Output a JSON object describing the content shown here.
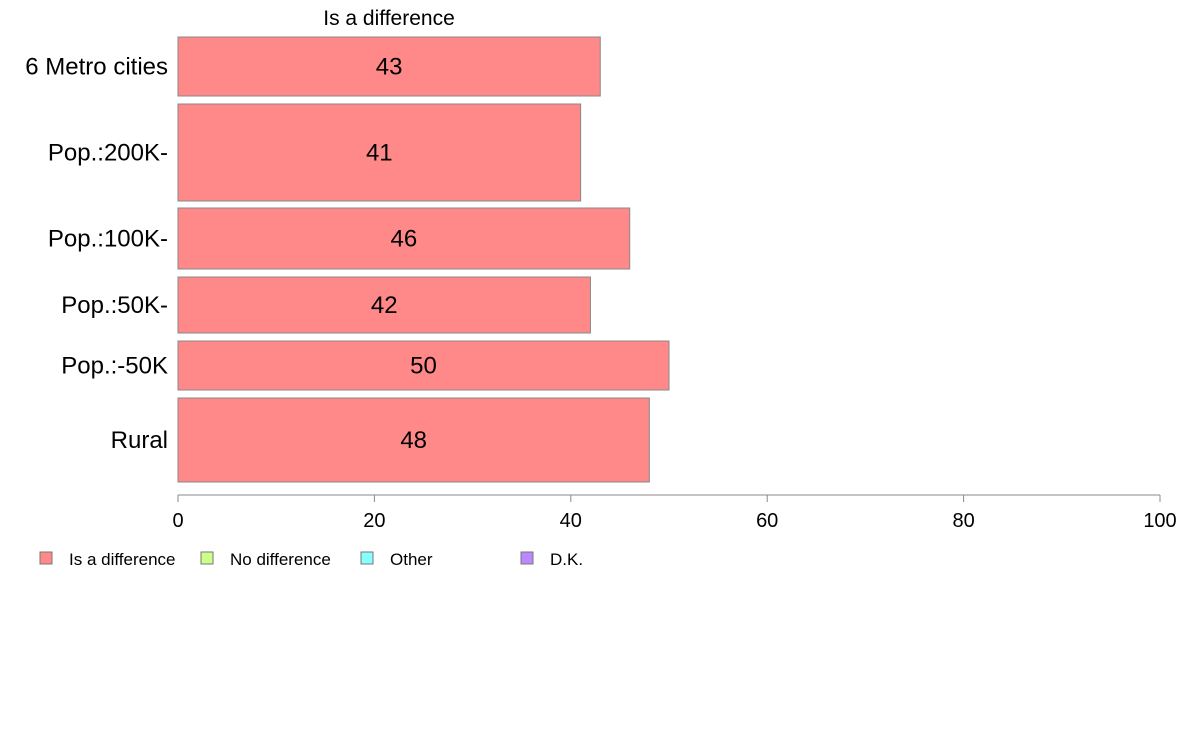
{
  "chart_data": {
    "type": "bar",
    "orientation": "horizontal",
    "title": "Is a difference",
    "categories": [
      "6 Metro cities",
      "Pop.:200K-",
      "Pop.:100K-",
      "Pop.:50K-",
      "Pop.:-50K",
      "Rural"
    ],
    "series": [
      {
        "name": "Is a difference",
        "values": [
          43,
          41,
          46,
          42,
          50,
          48
        ],
        "color": "#ff8888"
      }
    ],
    "xlim": [
      0,
      100
    ],
    "xticks": [
      0,
      20,
      40,
      60,
      80,
      100
    ],
    "grid": false,
    "legend": {
      "position": "bottom-left",
      "items": [
        {
          "label": "Is a difference",
          "color": "#ff8888"
        },
        {
          "label": "No difference",
          "color": "#ccff88"
        },
        {
          "label": "Other",
          "color": "#88ffff"
        },
        {
          "label": "D.K.",
          "color": "#bb88ff"
        }
      ]
    }
  }
}
